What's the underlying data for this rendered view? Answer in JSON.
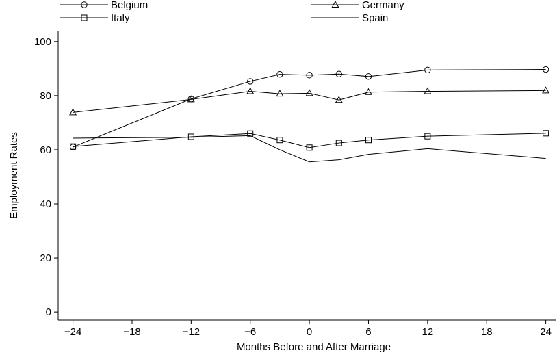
{
  "chart_data": {
    "type": "line",
    "xlabel": "Months Before and After Marriage",
    "ylabel": "Employment Rates",
    "xlim": [
      -25.5,
      25
    ],
    "ylim": [
      -3,
      104
    ],
    "x_ticks": [
      -24,
      -18,
      -12,
      -6,
      0,
      6,
      12,
      18,
      24
    ],
    "x_tick_labels": [
      "−24",
      "−18",
      "−12",
      "−6",
      "0",
      "6",
      "12",
      "18",
      "24"
    ],
    "y_ticks": [
      0,
      20,
      40,
      60,
      80,
      100
    ],
    "y_tick_labels": [
      "0",
      "20",
      "40",
      "60",
      "80",
      "100"
    ],
    "grid": false,
    "legend_position": "top",
    "series": [
      {
        "name": "Belgium",
        "marker": "circle",
        "x": [
          -24,
          -12,
          -6,
          -3,
          0,
          3,
          6,
          12,
          24
        ],
        "y": [
          61.0,
          78.8,
          85.3,
          87.9,
          87.6,
          88.0,
          87.1,
          89.5,
          89.7
        ]
      },
      {
        "name": "Germany",
        "marker": "triangle",
        "x": [
          -24,
          -12,
          -6,
          -3,
          0,
          3,
          6,
          12,
          24
        ],
        "y": [
          73.8,
          78.6,
          81.6,
          80.7,
          80.9,
          78.4,
          81.3,
          81.6,
          81.9
        ]
      },
      {
        "name": "Italy",
        "marker": "square",
        "x": [
          -24,
          -12,
          -6,
          -3,
          0,
          3,
          6,
          12,
          24
        ],
        "y": [
          61.2,
          64.8,
          66.0,
          63.6,
          60.8,
          62.5,
          63.6,
          65.0,
          66.1
        ]
      },
      {
        "name": "Spain",
        "marker": "none",
        "x": [
          -24,
          -12,
          -6,
          -3,
          0,
          3,
          6,
          12,
          24
        ],
        "y": [
          64.3,
          64.6,
          65.2,
          60.0,
          55.5,
          56.3,
          58.3,
          60.4,
          56.8
        ]
      }
    ]
  }
}
